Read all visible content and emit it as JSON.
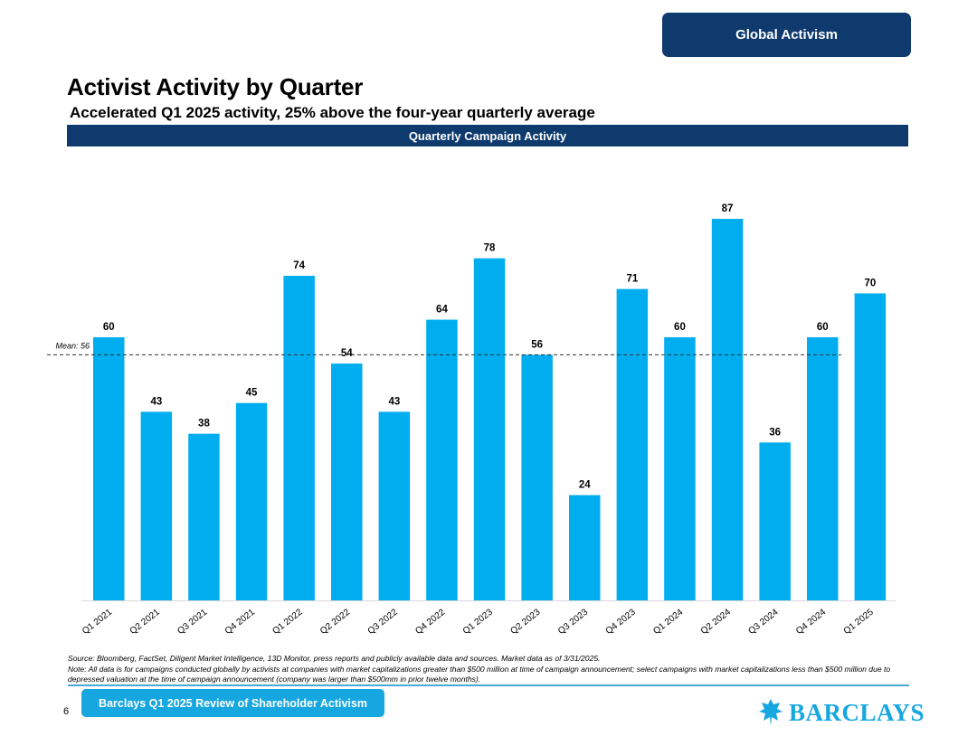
{
  "header": {
    "badge": "Global Activism"
  },
  "page": {
    "title": "Activist Activity by Quarter",
    "subtitle": "Accelerated Q1 2025 activity, 25% above the four-year quarterly average",
    "chart_banner": "Quarterly Campaign Activity"
  },
  "chart_data": {
    "type": "bar",
    "title": "Quarterly Campaign Activity",
    "categories": [
      "Q1 2021",
      "Q2 2021",
      "Q3 2021",
      "Q4 2021",
      "Q1 2022",
      "Q2 2022",
      "Q3 2022",
      "Q4 2022",
      "Q1 2023",
      "Q2 2023",
      "Q3 2023",
      "Q4 2023",
      "Q1 2024",
      "Q2 2024",
      "Q3 2024",
      "Q4 2024",
      "Q1 2025"
    ],
    "values": [
      60,
      43,
      38,
      45,
      74,
      54,
      43,
      64,
      78,
      56,
      24,
      71,
      60,
      87,
      36,
      60,
      70
    ],
    "mean": 56,
    "mean_label": "Mean: 56",
    "xlabel": "",
    "ylabel": "",
    "ylim": [
      0,
      87
    ],
    "bar_color": "#00aeef",
    "mean_line_color": "#333333",
    "grid": false
  },
  "footer": {
    "source": "Source: Bloomberg, FactSet, Diligent Market Intelligence, 13D Monitor, press reports and publicly available data and sources. Market data as of 3/31/2025.",
    "note": "Note: All data is for campaigns conducted globally by activists at companies with market capitalizations greater than $500 million at time of campaign announcement; select campaigns with market capitalizations less than $500 million due to depressed valuation at the time of campaign announcement (company was larger than $500mm in prior twelve months).",
    "page_number": "6",
    "report_label": "Barclays Q1 2025 Review of Shareholder Activism",
    "brand": "BARCLAYS",
    "brand_icon": "eagle-icon",
    "brand_color": "#16a6e0",
    "accent_color": "#0e3a6e"
  }
}
